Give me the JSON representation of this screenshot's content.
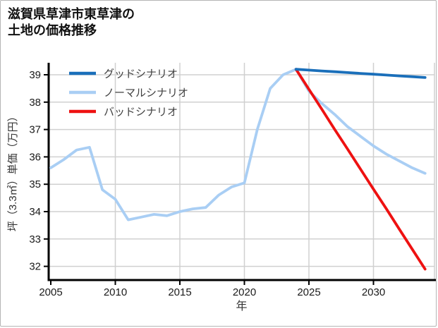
{
  "window": {
    "background": "#ffffff",
    "border_color": "#b5b5b5"
  },
  "title": {
    "line1": "滋賀県草津市東草津の",
    "line2": "土地の価格推移"
  },
  "chart_data": {
    "type": "line",
    "title": "滋賀県草津市東草津の土地の価格推移",
    "xlabel": "年",
    "ylabel": "坪（3.3㎡）単価（万円）",
    "x_ticks": [
      2005,
      2010,
      2015,
      2020,
      2025,
      2030
    ],
    "y_ticks": [
      32,
      33,
      34,
      35,
      36,
      37,
      38,
      39
    ],
    "xlim": [
      2004.8,
      2034.9
    ],
    "ylim": [
      31.5,
      39.45
    ],
    "grid": true,
    "legend_position": "upper-left",
    "colors": {
      "grid": "#d0d0d0",
      "spine": "#000000",
      "tick_label": "#1a1a1a",
      "legend_text": "#404040",
      "axis_label": "#333333"
    },
    "series": [
      {
        "name": "グッドシナリオ",
        "color": "#1a6fba",
        "x": [
          2024,
          2025,
          2026,
          2027,
          2028,
          2029,
          2030,
          2031,
          2032,
          2033,
          2034
        ],
        "values": [
          39.2,
          39.17,
          39.14,
          39.11,
          39.08,
          39.05,
          39.02,
          38.99,
          38.96,
          38.93,
          38.9
        ]
      },
      {
        "name": "ノーマルシナリオ",
        "color": "#a9cef4",
        "x": [
          2005,
          2006,
          2007,
          2008,
          2009,
          2010,
          2011,
          2012,
          2013,
          2014,
          2015,
          2016,
          2017,
          2018,
          2019,
          2020,
          2021,
          2022,
          2023,
          2024,
          2025,
          2026,
          2027,
          2028,
          2029,
          2030,
          2031,
          2032,
          2033,
          2034
        ],
        "values": [
          35.6,
          35.9,
          36.25,
          36.35,
          34.8,
          34.45,
          33.7,
          33.8,
          33.9,
          33.85,
          34.0,
          34.1,
          34.15,
          34.6,
          34.9,
          35.05,
          37.0,
          38.5,
          39.0,
          39.2,
          38.4,
          37.95,
          37.55,
          37.1,
          36.75,
          36.4,
          36.1,
          35.85,
          35.6,
          35.4
        ]
      },
      {
        "name": "バッドシナリオ",
        "color": "#ee1111",
        "x": [
          2024,
          2025,
          2026,
          2027,
          2028,
          2029,
          2030,
          2031,
          2032,
          2033,
          2034
        ],
        "values": [
          39.2,
          38.47,
          37.74,
          37.0,
          36.28,
          35.55,
          34.82,
          34.1,
          33.36,
          32.63,
          31.9
        ]
      }
    ]
  }
}
